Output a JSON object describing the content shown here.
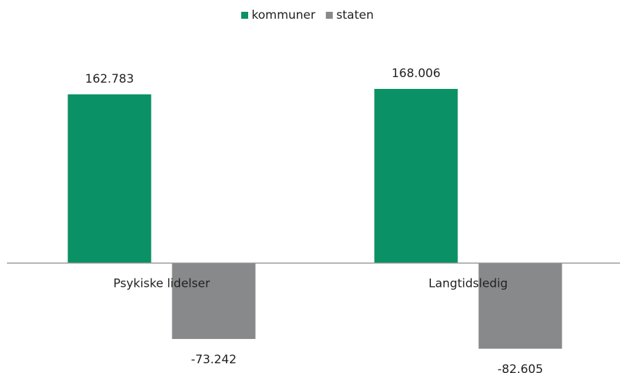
{
  "chart_data": {
    "type": "bar",
    "categories": [
      "Psykiske lidelser",
      "Langtidsledig"
    ],
    "series": [
      {
        "name": "kommuner",
        "color": "#0a9165",
        "values": [
          162783,
          168006
        ],
        "value_labels": [
          "162.783",
          "168.006"
        ]
      },
      {
        "name": "staten",
        "color": "#87898b",
        "values": [
          -73242,
          -82605
        ],
        "value_labels": [
          "-73.242",
          "-82.605"
        ]
      }
    ],
    "legend": "top"
  }
}
